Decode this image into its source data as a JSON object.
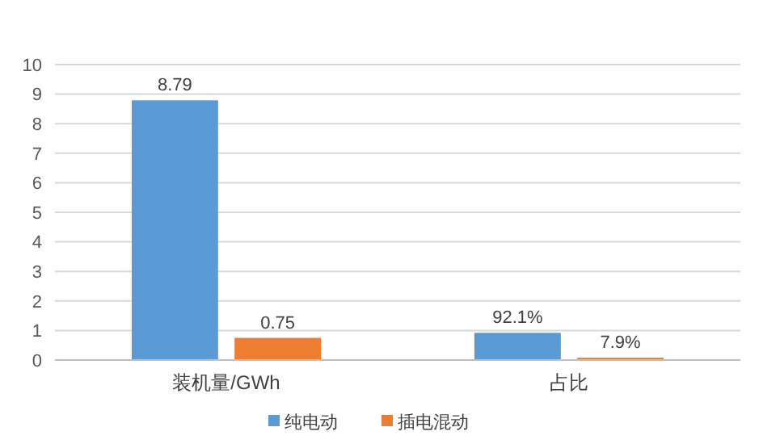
{
  "chart_data": {
    "type": "bar",
    "categories": [
      "装机量/GWh",
      "占比"
    ],
    "series": [
      {
        "name": "纯电动",
        "color": "#5b9bd5",
        "values": [
          8.79,
          0.921
        ],
        "value_labels": [
          "8.79",
          "92.1%"
        ]
      },
      {
        "name": "插电混动",
        "color": "#ed7d31",
        "values": [
          0.75,
          0.079
        ],
        "value_labels": [
          "0.75",
          "7.9%"
        ]
      }
    ],
    "ylim": [
      0,
      10
    ],
    "yticks": [
      0,
      1,
      2,
      3,
      4,
      5,
      6,
      7,
      8,
      9,
      10
    ],
    "grid": "y",
    "legend": "bottom"
  }
}
